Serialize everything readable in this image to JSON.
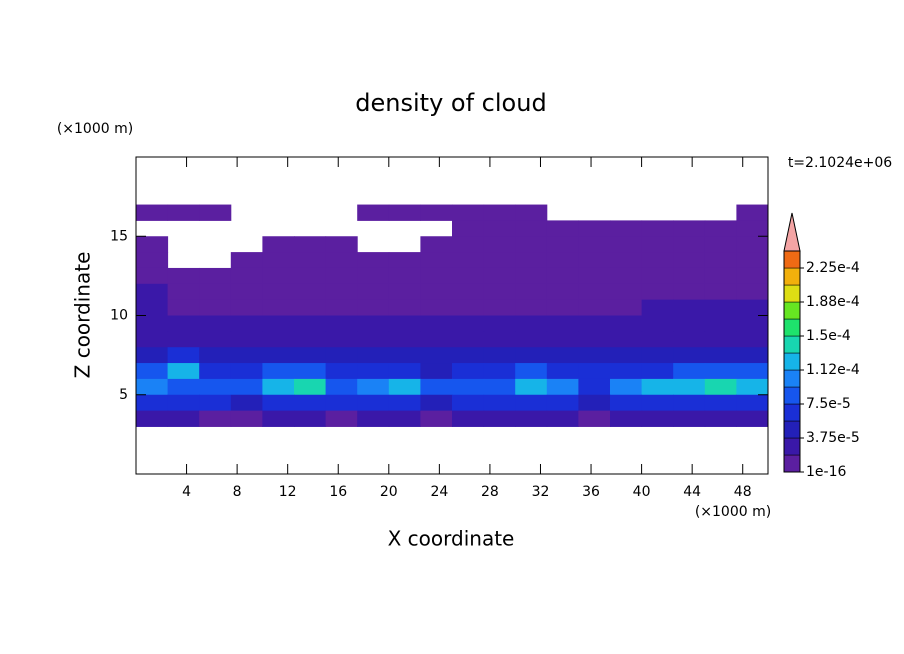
{
  "chart_data": {
    "type": "contour",
    "title": "density of cloud",
    "x_label": "X coordinate",
    "y_label": "Z coordinate",
    "x_unit": "(×1000 m)",
    "y_unit": "(×1000 m)",
    "time_label": "t=2.1024e+06",
    "xlim": [
      0,
      50
    ],
    "xticks": [
      4,
      8,
      12,
      16,
      20,
      24,
      28,
      32,
      36,
      40,
      44,
      48
    ],
    "ylim": [
      0,
      20
    ],
    "yticks": [
      5,
      10,
      15
    ],
    "x": [
      1.25,
      3.75,
      6.25,
      8.75,
      11.25,
      13.75,
      16.25,
      18.75,
      21.25,
      23.75,
      26.25,
      28.75,
      31.25,
      33.75,
      36.25,
      38.75,
      41.25,
      43.75,
      46.25,
      48.75
    ],
    "z": [
      16.5,
      15.5,
      14.5,
      13.5,
      12.5,
      11.5,
      10.5,
      9.5,
      8.5,
      7.5,
      6.5,
      5.5,
      4.5,
      3.5
    ],
    "values": [
      [
        5e-06,
        5e-06,
        5e-06,
        null,
        null,
        null,
        null,
        5e-06,
        5e-06,
        5e-06,
        5e-06,
        5e-06,
        5e-06,
        null,
        null,
        null,
        null,
        null,
        null,
        5e-06
      ],
      [
        null,
        null,
        null,
        null,
        null,
        null,
        null,
        null,
        null,
        null,
        5e-06,
        5e-06,
        5e-06,
        5e-06,
        5e-06,
        5e-06,
        5e-06,
        5e-06,
        5e-06,
        5e-06
      ],
      [
        5e-06,
        null,
        null,
        null,
        5e-06,
        5e-06,
        5e-06,
        null,
        null,
        5e-06,
        5e-06,
        5e-06,
        5e-06,
        5e-06,
        5e-06,
        5e-06,
        5e-06,
        5e-06,
        5e-06,
        5e-06
      ],
      [
        5e-06,
        null,
        null,
        5e-06,
        5e-06,
        5e-06,
        5e-06,
        5e-06,
        5e-06,
        5e-06,
        5e-06,
        5e-06,
        5e-06,
        5e-06,
        5e-06,
        5e-06,
        5e-06,
        5e-06,
        5e-06,
        5e-06
      ],
      [
        8e-06,
        8e-06,
        8e-06,
        8e-06,
        8e-06,
        8e-06,
        8e-06,
        8e-06,
        8e-06,
        8e-06,
        8e-06,
        8e-06,
        8e-06,
        8e-06,
        8e-06,
        8e-06,
        8e-06,
        8e-06,
        8e-06,
        8e-06
      ],
      [
        2e-05,
        1e-05,
        1e-05,
        1e-05,
        1e-05,
        1e-05,
        1e-05,
        1e-05,
        1e-05,
        1e-05,
        1e-05,
        1e-05,
        1e-05,
        1e-05,
        1e-05,
        1e-05,
        1e-05,
        1e-05,
        1e-05,
        1e-05
      ],
      [
        2e-05,
        1.5e-05,
        1.5e-05,
        1.5e-05,
        1.5e-05,
        1.5e-05,
        1.5e-05,
        1.5e-05,
        1.5e-05,
        1.5e-05,
        1.5e-05,
        1.5e-05,
        1.5e-05,
        1.5e-05,
        1.5e-05,
        1.5e-05,
        2e-05,
        2e-05,
        2e-05,
        2e-05
      ],
      [
        2.5e-05,
        2e-05,
        2e-05,
        2e-05,
        2e-05,
        2e-05,
        2e-05,
        2e-05,
        2e-05,
        2e-05,
        2e-05,
        2e-05,
        2e-05,
        2e-05,
        2e-05,
        2e-05,
        2.5e-05,
        2.5e-05,
        2.5e-05,
        2.5e-05
      ],
      [
        3e-05,
        3e-05,
        2.5e-05,
        2.5e-05,
        2.5e-05,
        2.5e-05,
        2.5e-05,
        2.5e-05,
        2.5e-05,
        2.5e-05,
        2.5e-05,
        2.5e-05,
        3e-05,
        3e-05,
        2.5e-05,
        3e-05,
        3e-05,
        3e-05,
        3e-05,
        3e-05
      ],
      [
        5e-05,
        6e-05,
        4e-05,
        4e-05,
        4e-05,
        4e-05,
        4e-05,
        4e-05,
        4e-05,
        4e-05,
        4e-05,
        4e-05,
        4e-05,
        4e-05,
        4e-05,
        4e-05,
        4e-05,
        4e-05,
        4e-05,
        4e-05
      ],
      [
        8e-05,
        0.00012,
        6e-05,
        6e-05,
        8e-05,
        9e-05,
        6e-05,
        6e-05,
        6e-05,
        5e-05,
        6e-05,
        6e-05,
        8e-05,
        7e-05,
        6e-05,
        6e-05,
        7e-05,
        8e-05,
        9e-05,
        8e-05
      ],
      [
        0.00011,
        9e-05,
        8e-05,
        9e-05,
        0.00013,
        0.000135,
        9e-05,
        0.00011,
        0.00012,
        8e-05,
        9e-05,
        8e-05,
        0.00013,
        0.00011,
        7e-05,
        0.00011,
        0.00013,
        0.00012,
        0.000135,
        0.00012
      ],
      [
        6e-05,
        7e-05,
        6e-05,
        5e-05,
        7e-05,
        7e-05,
        6e-05,
        7e-05,
        7e-05,
        5e-05,
        6e-05,
        6e-05,
        7e-05,
        6e-05,
        5e-05,
        6e-05,
        7e-05,
        7e-05,
        7e-05,
        6e-05
      ],
      [
        2e-05,
        2e-05,
        1.5e-05,
        1.5e-05,
        2e-05,
        2e-05,
        1.5e-05,
        2e-05,
        2e-05,
        1.5e-05,
        2e-05,
        2e-05,
        2e-05,
        2e-05,
        1.5e-05,
        2e-05,
        2e-05,
        2e-05,
        2e-05,
        2e-05
      ]
    ],
    "colorbar": {
      "levels": [
        1e-16,
        1.875e-05,
        3.75e-05,
        5.625e-05,
        7.5e-05,
        9.375e-05,
        0.0001125,
        0.00013125,
        0.00015,
        0.00016875,
        0.0001875,
        0.00020625,
        0.000225,
        0.00024375
      ],
      "colors": [
        "#5b1fa0",
        "#3a18a8",
        "#2320b8",
        "#1a2fd6",
        "#1656ee",
        "#1a82f6",
        "#16b4e8",
        "#18d6b0",
        "#1ee26c",
        "#66e622",
        "#dede14",
        "#f2b00c",
        "#ef6a14"
      ],
      "over_color": "#f4a4a4",
      "ticks": [
        {
          "value": 1e-16,
          "label": "1e-16"
        },
        {
          "value": 3.75e-05,
          "label": "3.75e-5"
        },
        {
          "value": 7.5e-05,
          "label": "7.5e-5"
        },
        {
          "value": 0.0001125,
          "label": "1.12e-4"
        },
        {
          "value": 0.00015,
          "label": "1.5e-4"
        },
        {
          "value": 0.0001875,
          "label": "1.88e-4"
        },
        {
          "value": 0.000225,
          "label": "2.25e-4"
        }
      ]
    }
  }
}
